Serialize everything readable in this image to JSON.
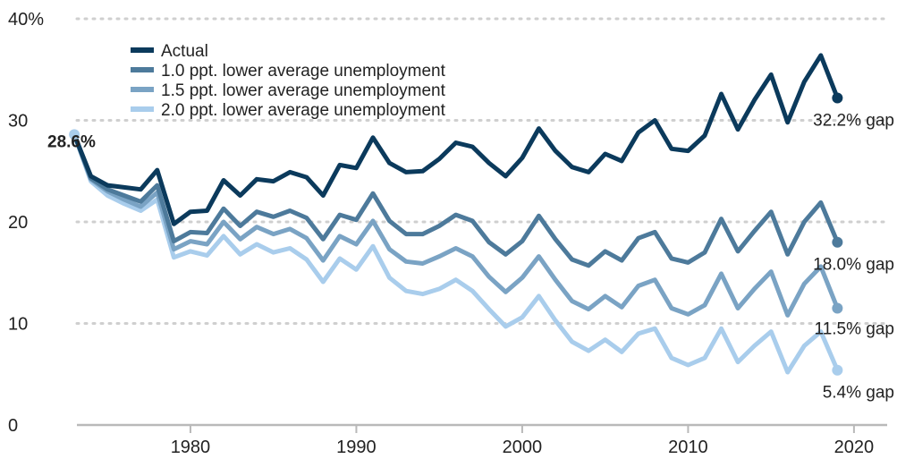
{
  "chart_data": {
    "type": "line",
    "title": "",
    "xlabel": "",
    "ylabel": "",
    "xlim": [
      1971,
      2022
    ],
    "ylim": [
      0,
      40
    ],
    "x_ticks": [
      1980,
      1990,
      2000,
      2010,
      2020
    ],
    "y_ticks": [
      0,
      10,
      20,
      30,
      40
    ],
    "y_tick_labels": [
      "0",
      "10",
      "20",
      "30",
      "40%"
    ],
    "grid": "horizontal-dotted",
    "legend_position": "top-left",
    "x": [
      1973,
      1974,
      1975,
      1976,
      1977,
      1978,
      1979,
      1980,
      1981,
      1982,
      1983,
      1984,
      1985,
      1986,
      1987,
      1988,
      1989,
      1990,
      1991,
      1992,
      1993,
      1994,
      1995,
      1996,
      1997,
      1998,
      1999,
      2000,
      2001,
      2002,
      2003,
      2004,
      2005,
      2006,
      2007,
      2008,
      2009,
      2010,
      2011,
      2012,
      2013,
      2014,
      2015,
      2016,
      2017,
      2018,
      2019
    ],
    "series": [
      {
        "name": "Actual",
        "color": "#0b3a5c",
        "values": [
          28.6,
          24.5,
          23.6,
          23.4,
          23.2,
          25.1,
          19.8,
          21.0,
          21.1,
          24.1,
          22.6,
          24.2,
          24.0,
          24.9,
          24.4,
          22.6,
          25.6,
          25.3,
          28.3,
          25.8,
          24.9,
          25.0,
          26.2,
          27.8,
          27.4,
          25.8,
          24.5,
          26.3,
          29.2,
          27.0,
          25.4,
          24.9,
          26.7,
          26.0,
          28.8,
          30.0,
          27.2,
          27.0,
          28.5,
          32.6,
          29.1,
          32.0,
          34.5,
          29.8,
          33.8,
          36.4,
          32.2
        ]
      },
      {
        "name": "1.0 ppt. lower average unemployment",
        "color": "#4d7a9b",
        "values": [
          28.6,
          24.3,
          23.2,
          22.6,
          22.0,
          23.6,
          18.1,
          19.0,
          18.9,
          21.3,
          19.6,
          21.0,
          20.5,
          21.1,
          20.4,
          18.3,
          20.7,
          20.2,
          22.8,
          20.1,
          18.8,
          18.8,
          19.6,
          20.7,
          20.1,
          18.0,
          16.8,
          18.1,
          20.6,
          18.3,
          16.3,
          15.7,
          17.1,
          16.2,
          18.4,
          19.0,
          16.4,
          16.0,
          17.0,
          20.3,
          17.1,
          19.1,
          21.0,
          16.8,
          20.0,
          21.9,
          18.0
        ]
      },
      {
        "name": "1.5 ppt. lower average unemployment",
        "color": "#7aa3c4",
        "values": [
          28.6,
          24.2,
          23.0,
          22.2,
          21.5,
          22.9,
          17.3,
          18.1,
          17.8,
          20.0,
          18.3,
          19.5,
          18.8,
          19.3,
          18.4,
          16.2,
          18.6,
          17.8,
          20.1,
          17.3,
          16.1,
          15.9,
          16.6,
          17.4,
          16.6,
          14.6,
          13.1,
          14.5,
          16.6,
          14.3,
          12.2,
          11.4,
          12.7,
          11.6,
          13.7,
          14.3,
          11.5,
          10.9,
          11.8,
          14.9,
          11.5,
          13.4,
          15.1,
          10.8,
          13.9,
          15.6,
          11.5
        ]
      },
      {
        "name": "2.0 ppt. lower average unemployment",
        "color": "#a9cdec",
        "values": [
          28.6,
          24.0,
          22.6,
          21.8,
          21.1,
          22.2,
          16.5,
          17.1,
          16.7,
          18.6,
          16.8,
          17.8,
          17.0,
          17.4,
          16.3,
          14.1,
          16.4,
          15.3,
          17.6,
          14.5,
          13.2,
          12.9,
          13.4,
          14.3,
          13.2,
          11.4,
          9.7,
          10.6,
          12.7,
          10.3,
          8.2,
          7.3,
          8.4,
          7.2,
          9.0,
          9.5,
          6.6,
          5.9,
          6.6,
          9.5,
          6.2,
          7.8,
          9.2,
          5.2,
          7.8,
          9.2,
          5.4
        ]
      }
    ],
    "annotations": {
      "start": "28.6%",
      "end_labels": [
        "32.2% gap",
        "18.0% gap",
        "11.5% gap",
        "5.4% gap"
      ]
    }
  }
}
